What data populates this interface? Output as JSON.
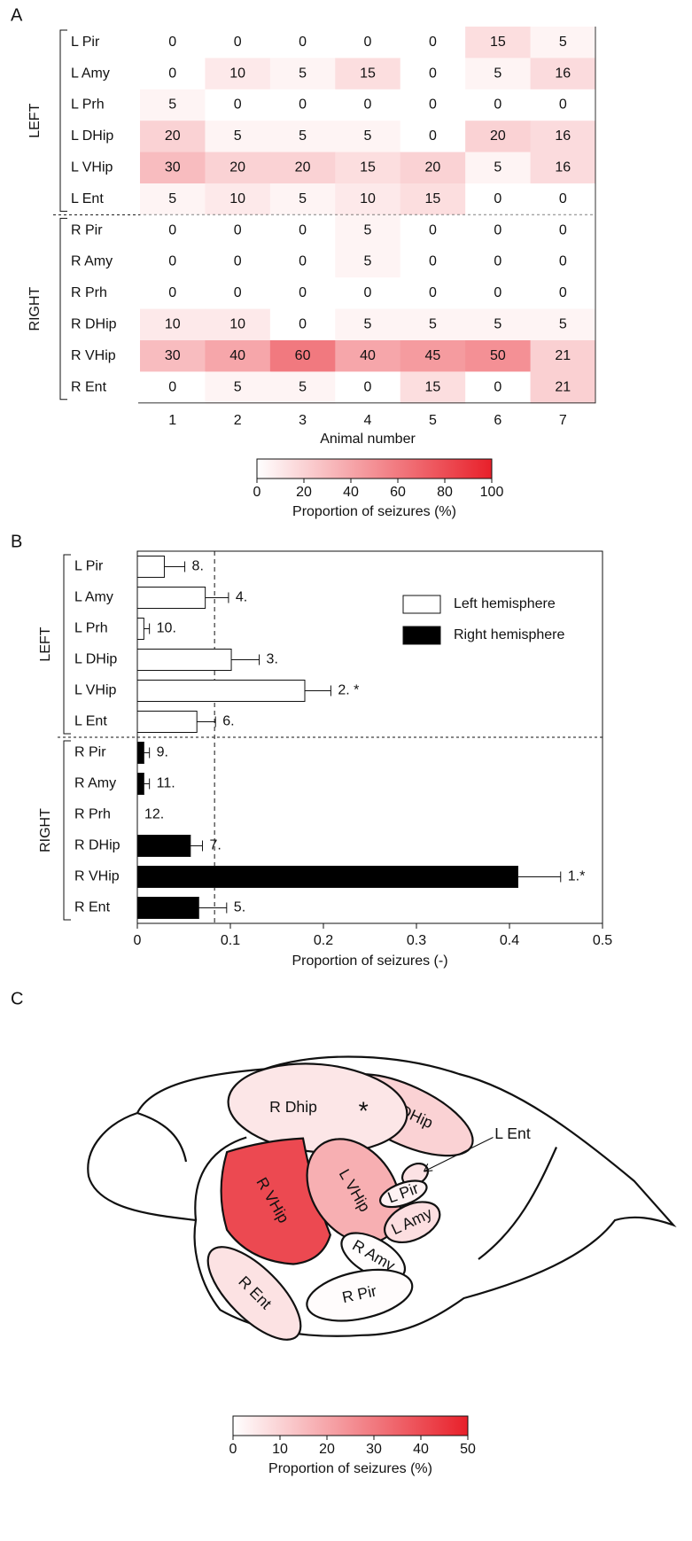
{
  "panels": [
    "A",
    "B",
    "C"
  ],
  "chart_data": [
    {
      "type": "heatmap",
      "categories": [
        1,
        2,
        3,
        4,
        5,
        6,
        7
      ],
      "xlabel": "Animal number",
      "groups": [
        {
          "name": "LEFT",
          "rows": [
            "L Pir",
            "L Amy",
            "L Prh",
            "L DHip",
            "L VHip",
            "L Ent"
          ],
          "values": [
            [
              0,
              0,
              0,
              0,
              0,
              15,
              5
            ],
            [
              0,
              10,
              5,
              15,
              0,
              5,
              16
            ],
            [
              5,
              0,
              0,
              0,
              0,
              0,
              0
            ],
            [
              20,
              5,
              5,
              5,
              0,
              20,
              16
            ],
            [
              30,
              20,
              20,
              15,
              20,
              5,
              16
            ],
            [
              5,
              10,
              5,
              10,
              15,
              0,
              0
            ]
          ]
        },
        {
          "name": "RIGHT",
          "rows": [
            "R Pir",
            "R Amy",
            "R Prh",
            "R DHip",
            "R VHip",
            "R Ent"
          ],
          "values": [
            [
              0,
              0,
              0,
              5,
              0,
              0,
              0
            ],
            [
              0,
              0,
              0,
              5,
              0,
              0,
              0
            ],
            [
              0,
              0,
              0,
              0,
              0,
              0,
              0
            ],
            [
              10,
              10,
              0,
              5,
              5,
              5,
              5
            ],
            [
              30,
              40,
              60,
              40,
              45,
              50,
              21
            ],
            [
              0,
              5,
              5,
              0,
              15,
              0,
              21
            ]
          ]
        }
      ],
      "colormap": [
        "#ffffff",
        "#e8202a"
      ],
      "clim": [
        0,
        100
      ],
      "cticks": [
        0,
        20,
        40,
        60,
        80,
        100
      ],
      "colorbar_label": "Proportion of seizures (%)"
    },
    {
      "type": "hbar",
      "xlabel": "Proportion of seizures (-)",
      "xlim": [
        0,
        0.5
      ],
      "xticks": [
        0,
        0.1,
        0.2,
        0.3,
        0.4,
        0.5
      ],
      "reference_line": 0.083,
      "groups": [
        {
          "name": "LEFT",
          "categories": [
            "L Pir",
            "L Amy",
            "L Prh",
            "L DHip",
            "L VHip",
            "L Ent"
          ]
        },
        {
          "name": "RIGHT",
          "categories": [
            "R Pir",
            "R Amy",
            "R Prh",
            "R DHip",
            "R VHip",
            "R Ent"
          ]
        }
      ],
      "series": [
        {
          "name": "Left hemisphere",
          "color": "#ffffff",
          "values": [
            0.029,
            0.073,
            0.007,
            0.101,
            0.18,
            0.064
          ],
          "errors": [
            0.022,
            0.025,
            0.006,
            0.03,
            0.028,
            0.02
          ],
          "annotations": [
            "8.",
            "4.",
            "10.",
            "3.",
            "2. *",
            "6."
          ]
        },
        {
          "name": "Right hemisphere",
          "color": "#000000",
          "values": [
            0.007,
            0.007,
            0,
            0.057,
            0.409,
            0.066
          ],
          "errors": [
            0.006,
            0.006,
            0,
            0.013,
            0.046,
            0.03
          ],
          "annotations": [
            "9.",
            "11.",
            "12.",
            "7.",
            "1.*",
            "5."
          ]
        }
      ],
      "legend": "upper right"
    },
    {
      "type": "region-map",
      "colormap": [
        "#ffffff",
        "#e8202a"
      ],
      "clim": [
        0,
        50
      ],
      "cticks": [
        0,
        10,
        20,
        30,
        40,
        50
      ],
      "colorbar_label": "Proportion of seizures (%)",
      "mark": "*",
      "regions": [
        {
          "name": "L DHip",
          "value": 10.1
        },
        {
          "name": "R Dhip",
          "value": 5.7
        },
        {
          "name": "L Ent",
          "value": 6.4
        },
        {
          "name": "R VHip",
          "value": 40.9
        },
        {
          "name": "L VHip",
          "value": 18
        },
        {
          "name": "L Pir",
          "value": 2.9
        },
        {
          "name": "L Amy",
          "value": 7.3
        },
        {
          "name": "R Amy",
          "value": 0.7
        },
        {
          "name": "R Pir",
          "value": 0.7
        },
        {
          "name": "R Ent",
          "value": 6.6
        }
      ]
    }
  ]
}
